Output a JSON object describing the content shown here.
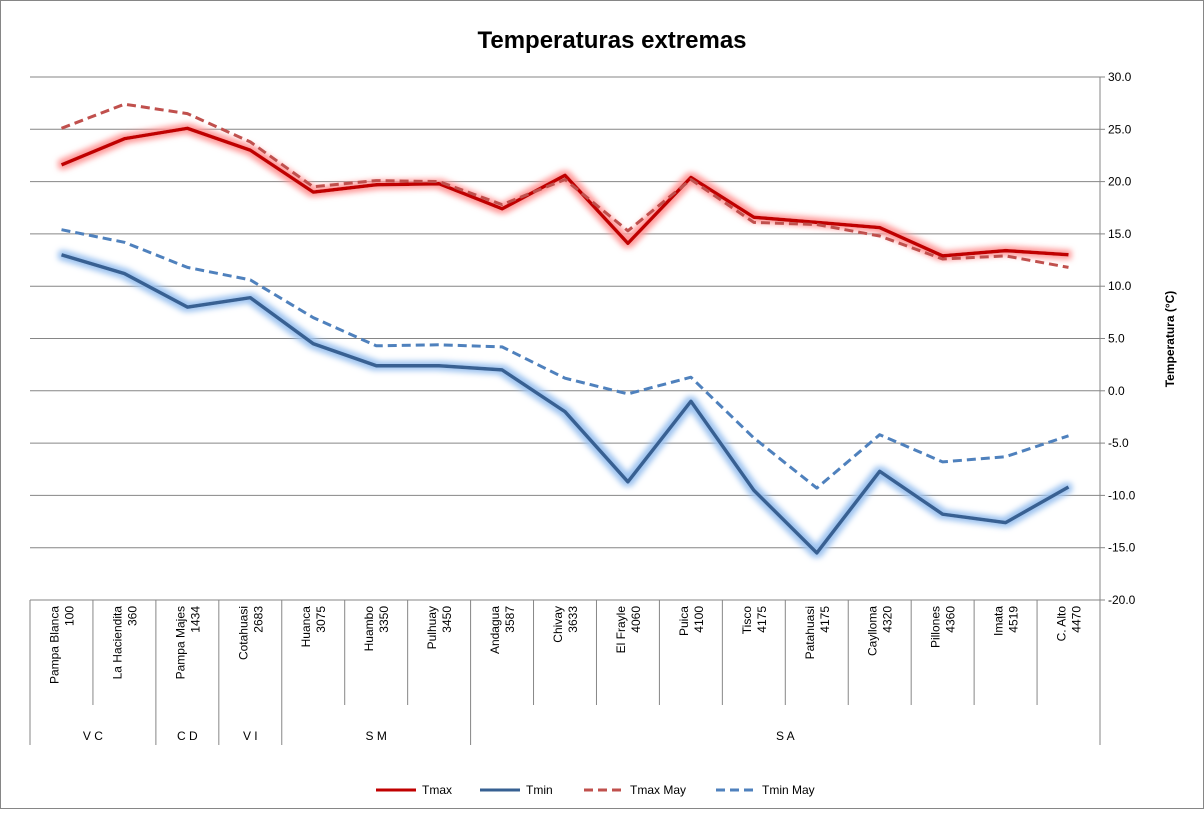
{
  "chart_data": {
    "type": "line",
    "title": "Temperaturas extremas",
    "y_label": "Temperatura (°C)",
    "categories": [
      [
        "Pampa Blanca",
        "100"
      ],
      [
        "La Haciendita",
        "360"
      ],
      [
        "Pampa Majes",
        "1434"
      ],
      [
        "Cotahuasi",
        "2683"
      ],
      [
        "Huanca",
        "3075"
      ],
      [
        "Huambo",
        "3350"
      ],
      [
        "Pulhuay",
        "3450"
      ],
      [
        "Andagua",
        "3587"
      ],
      [
        "Chivay",
        "3633"
      ],
      [
        "El Frayle",
        "4060"
      ],
      [
        "Puica",
        "4100"
      ],
      [
        "Tisco",
        "4175"
      ],
      [
        "Patahuasi",
        "4175"
      ],
      [
        "Caylloma",
        "4320"
      ],
      [
        "Pillones",
        "4360"
      ],
      [
        "Imata",
        "4519"
      ],
      [
        "C. Alto",
        "4470"
      ]
    ],
    "groups": [
      {
        "label": "V C",
        "count": 2
      },
      {
        "label": "C D",
        "count": 1
      },
      {
        "label": "V I",
        "count": 1
      },
      {
        "label": "S M",
        "count": 3
      },
      {
        "label": "S A",
        "count": 10
      }
    ],
    "series": [
      {
        "name": "Tmax",
        "color": "#c00000",
        "dash": false,
        "glow": "#ff9999",
        "values": [
          21.6,
          24.1,
          25.1,
          23.0,
          19.0,
          19.7,
          19.8,
          17.4,
          20.6,
          14.1,
          20.4,
          16.6,
          16.1,
          15.6,
          12.9,
          13.4,
          13.0
        ]
      },
      {
        "name": "Tmin",
        "color": "#376092",
        "dash": false,
        "glow": "#9dc3f0",
        "values": [
          13.0,
          11.2,
          8.0,
          8.9,
          4.5,
          2.4,
          2.4,
          2.0,
          -2.0,
          -8.7,
          -1.0,
          -9.5,
          -15.5,
          -7.7,
          -11.8,
          -12.6,
          -9.2
        ]
      },
      {
        "name": "Tmax May",
        "color": "#c0504d",
        "dash": true,
        "glow": null,
        "values": [
          25.1,
          27.4,
          26.5,
          23.8,
          19.5,
          20.1,
          20.0,
          17.8,
          20.2,
          15.3,
          20.2,
          16.1,
          15.9,
          14.8,
          12.6,
          12.9,
          11.8
        ]
      },
      {
        "name": "Tmin May",
        "color": "#4f81bd",
        "dash": true,
        "glow": null,
        "values": [
          15.4,
          14.2,
          11.8,
          10.6,
          7.0,
          4.3,
          4.4,
          4.2,
          1.2,
          -0.3,
          1.3,
          -4.5,
          -9.3,
          -4.2,
          -6.8,
          -6.3,
          -4.3
        ]
      }
    ],
    "ylim": [
      -20,
      30
    ],
    "yticks": [
      {
        "value": -20,
        "label": "-20.0"
      },
      {
        "value": -15,
        "label": "-15.0"
      },
      {
        "value": -10,
        "label": "-10.0"
      },
      {
        "value": -5,
        "label": "-5.0"
      },
      {
        "value": 0,
        "label": "0.0"
      },
      {
        "value": 5,
        "label": "5.0"
      },
      {
        "value": 10,
        "label": "10.0"
      },
      {
        "value": 15,
        "label": "15.0"
      },
      {
        "value": 20,
        "label": "20.0"
      },
      {
        "value": 25,
        "label": "25.0"
      },
      {
        "value": 30,
        "label": "30.0"
      }
    ],
    "grid": true,
    "legend": "bottom"
  }
}
